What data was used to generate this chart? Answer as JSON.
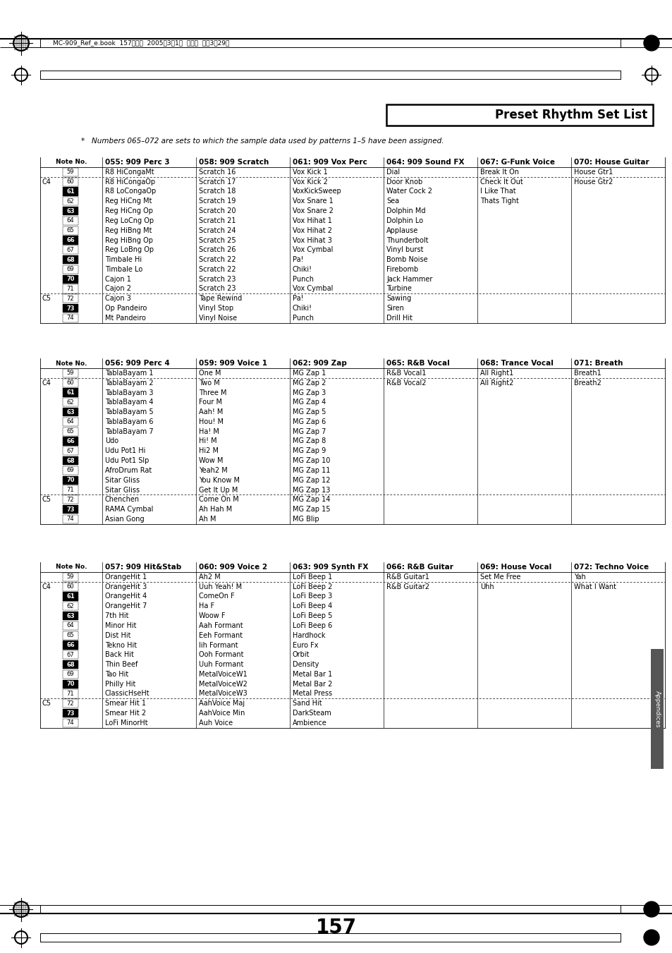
{
  "title": "Preset Rhythm Set List",
  "footnote": "*   Numbers 065–072 are sets to which the sample data used by patterns 1–5 have been assigned.",
  "header_text": "MC-909_Ref_e.book  157ページ  2005年3月1日  火曜日  午後3時29分",
  "page_number": "157",
  "sections": [
    {
      "col_headers": [
        "055: 909 Perc 3",
        "058: 909 Scratch",
        "061: 909 Vox Perc",
        "064: 909 Sound FX",
        "067: G-Funk Voice",
        "070: House Guitar"
      ],
      "rows": [
        [
          "59",
          "R8 HiCongaMt",
          "Scratch 16",
          "Vox Kick 1",
          "Dial",
          "Break It On",
          "House Gtr1"
        ],
        [
          "60",
          "R8 HiCongaOp",
          "Scratch 17",
          "Vox Kick 2",
          "Door Knob",
          "Check It Out",
          "House Gtr2"
        ],
        [
          "61",
          "R8 LoCongaOp",
          "Scratch 18",
          "VoxKickSweep",
          "Water Cock 2",
          "I Like That",
          ""
        ],
        [
          "62",
          "Reg HiCng Mt",
          "Scratch 19",
          "Vox Snare 1",
          "Sea",
          "Thats Tight",
          ""
        ],
        [
          "63",
          "Reg HiCng Op",
          "Scratch 20",
          "Vox Snare 2",
          "Dolphin Md",
          "",
          ""
        ],
        [
          "64",
          "Reg LoCng Op",
          "Scratch 21",
          "Vox Hihat 1",
          "Dolphin Lo",
          "",
          ""
        ],
        [
          "65",
          "Reg HiBng Mt",
          "Scratch 24",
          "Vox Hihat 2",
          "Applause",
          "",
          ""
        ],
        [
          "66",
          "Reg HiBng Op",
          "Scratch 25",
          "Vox Hihat 3",
          "Thunderbolt",
          "",
          ""
        ],
        [
          "67",
          "Reg LoBng Op",
          "Scratch 26",
          "Vox Cymbal",
          "Vinyl burst",
          "",
          ""
        ],
        [
          "68",
          "Timbale Hi",
          "Scratch 22",
          "Pa!",
          "Bomb Noise",
          "",
          ""
        ],
        [
          "69",
          "Timbale Lo",
          "Scratch 22",
          "Chiki!",
          "Firebomb",
          "",
          ""
        ],
        [
          "70",
          "Cajon 1",
          "Scratch 23",
          "Punch",
          "Jack Hammer",
          "",
          ""
        ],
        [
          "71",
          "Cajon 2",
          "Scratch 23",
          "Vox Cymbal",
          "Turbine",
          "",
          ""
        ],
        [
          "72",
          "Cajon 3",
          "Tape Rewind",
          "Pa!",
          "Sawing",
          "",
          ""
        ],
        [
          "73",
          "Op Pandeiro",
          "Vinyl Stop",
          "Chiki!",
          "Siren",
          "",
          ""
        ],
        [
          "74",
          "Mt Pandeiro",
          "Vinyl Noise",
          "Punch",
          "Drill Hit",
          "",
          ""
        ]
      ]
    },
    {
      "col_headers": [
        "056: 909 Perc 4",
        "059: 909 Voice 1",
        "062: 909 Zap",
        "065: R&B Vocal",
        "068: Trance Vocal",
        "071: Breath"
      ],
      "rows": [
        [
          "59",
          "TablaBayam 1",
          "One M",
          "MG Zap 1",
          "R&B Vocal1",
          "All Right1",
          "Breath1"
        ],
        [
          "60",
          "TablaBayam 2",
          "Two M",
          "MG Zap 2",
          "R&B Vocal2",
          "All Right2",
          "Breath2"
        ],
        [
          "61",
          "TablaBayam 3",
          "Three M",
          "MG Zap 3",
          "",
          "",
          ""
        ],
        [
          "62",
          "TablaBayam 4",
          "Four M",
          "MG Zap 4",
          "",
          "",
          ""
        ],
        [
          "63",
          "TablaBayam 5",
          "Aah! M",
          "MG Zap 5",
          "",
          "",
          ""
        ],
        [
          "64",
          "TablaBayam 6",
          "Hou! M",
          "MG Zap 6",
          "",
          "",
          ""
        ],
        [
          "65",
          "TablaBayam 7",
          "Ha! M",
          "MG Zap 7",
          "",
          "",
          ""
        ],
        [
          "66",
          "Udo",
          "Hi! M",
          "MG Zap 8",
          "",
          "",
          ""
        ],
        [
          "67",
          "Udu Pot1 Hi",
          "Hi2 M",
          "MG Zap 9",
          "",
          "",
          ""
        ],
        [
          "68",
          "Udu Pot1 Slp",
          "Wow M",
          "MG Zap 10",
          "",
          "",
          ""
        ],
        [
          "69",
          "AfroDrum Rat",
          "Yeah2 M",
          "MG Zap 11",
          "",
          "",
          ""
        ],
        [
          "70",
          "Sitar Gliss",
          "You Know M",
          "MG Zap 12",
          "",
          "",
          ""
        ],
        [
          "71",
          "Sitar Gliss",
          "Get It Up M",
          "MG Zap 13",
          "",
          "",
          ""
        ],
        [
          "72",
          "Chenchen",
          "Come On M",
          "MG Zap 14",
          "",
          "",
          ""
        ],
        [
          "73",
          "RAMA Cymbal",
          "Ah Hah M",
          "MG Zap 15",
          "",
          "",
          ""
        ],
        [
          "74",
          "Asian Gong",
          "Ah M",
          "MG Blip",
          "",
          "",
          ""
        ]
      ]
    },
    {
      "col_headers": [
        "057: 909 Hit&Stab",
        "060: 909 Voice 2",
        "063: 909 Synth FX",
        "066: R&B Guitar",
        "069: House Vocal",
        "072: Techno Voice"
      ],
      "rows": [
        [
          "59",
          "OrangeHit 1",
          "Ah2 M",
          "LoFi Beep 1",
          "R&B Guitar1",
          "Set Me Free",
          "Yah"
        ],
        [
          "60",
          "OrangeHit 3",
          "Uuh Yeah! M",
          "LoFi Beep 2",
          "R&B Guitar2",
          "Uhh",
          "What I Want"
        ],
        [
          "61",
          "OrangeHit 4",
          "ComeOn F",
          "LoFi Beep 3",
          "",
          "",
          ""
        ],
        [
          "62",
          "OrangeHit 7",
          "Ha F",
          "LoFi Beep 4",
          "",
          "",
          ""
        ],
        [
          "63",
          "7th Hit",
          "Woow F",
          "LoFi Beep 5",
          "",
          "",
          ""
        ],
        [
          "64",
          "Minor Hit",
          "Aah Formant",
          "LoFi Beep 6",
          "",
          "",
          ""
        ],
        [
          "65",
          "Dist Hit",
          "Eeh Formant",
          "Hardhock",
          "",
          "",
          ""
        ],
        [
          "66",
          "Tekno Hit",
          "Iih Formant",
          "Euro Fx",
          "",
          "",
          ""
        ],
        [
          "67",
          "Back Hit",
          "Ooh Formant",
          "Orbit",
          "",
          "",
          ""
        ],
        [
          "68",
          "Thin Beef",
          "Uuh Formant",
          "Density",
          "",
          "",
          ""
        ],
        [
          "69",
          "Tao Hit",
          "MetalVoiceW1",
          "Metal Bar 1",
          "",
          "",
          ""
        ],
        [
          "70",
          "Philly Hit",
          "MetalVoiceW2",
          "Metal Bar 2",
          "",
          "",
          ""
        ],
        [
          "71",
          "ClassicHseHt",
          "MetalVoiceW3",
          "Metal Press",
          "",
          "",
          ""
        ],
        [
          "72",
          "Smear Hit 1",
          "AahVoice Maj",
          "Sand Hit",
          "",
          "",
          ""
        ],
        [
          "73",
          "Smear Hit 2",
          "AahVoice Min",
          "DarkSteam",
          "",
          "",
          ""
        ],
        [
          "74",
          "LoFi MinorHt",
          "Auh Voice",
          "Ambience",
          "",
          "",
          ""
        ]
      ]
    }
  ],
  "black_keys": [
    61,
    63,
    66,
    68,
    70,
    73
  ],
  "c4_note": 60,
  "c5_note": 72
}
